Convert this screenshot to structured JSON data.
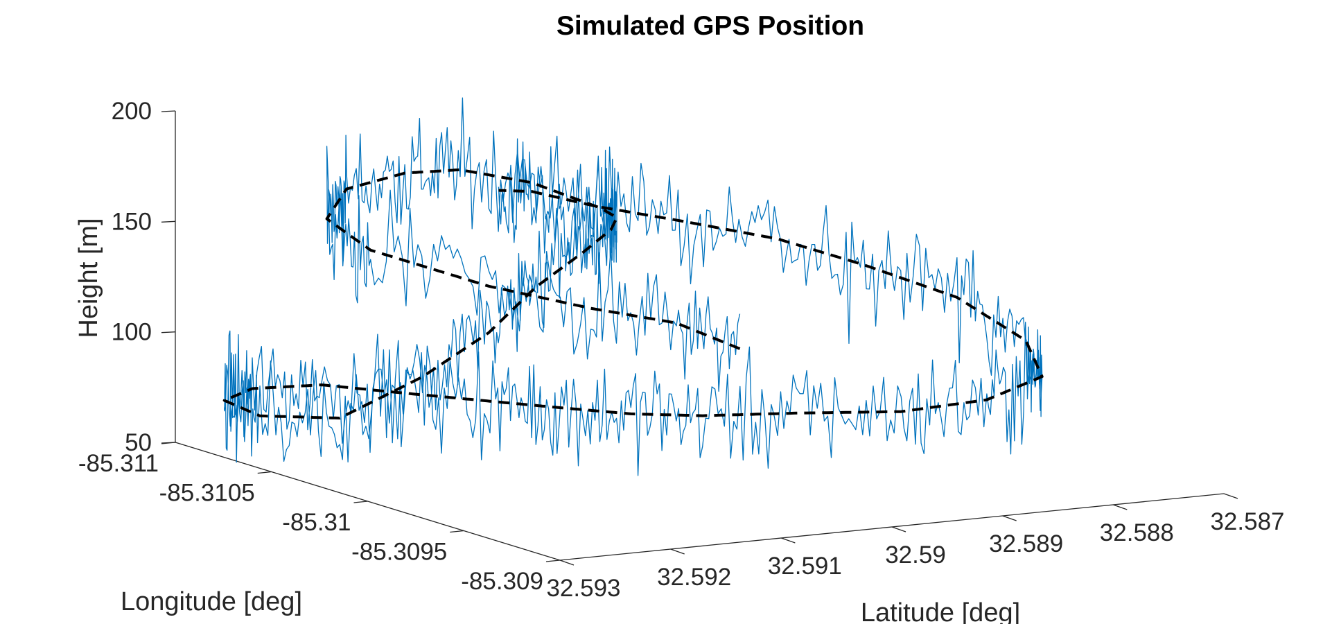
{
  "chart_data": {
    "type": "line",
    "title": "Simulated GPS Position",
    "xlabel": "Latitude [deg]",
    "ylabel": "Longitude [deg]",
    "zlabel": "Height [m]",
    "x_ticks": [
      "32.593",
      "32.592",
      "32.591",
      "32.59",
      "32.589",
      "32.588",
      "32.587"
    ],
    "y_ticks": [
      "-85.311",
      "-85.3105",
      "-85.31",
      "-85.3095",
      "-85.309"
    ],
    "z_ticks": [
      "50",
      "100",
      "150",
      "200"
    ],
    "xlim": [
      32.587,
      32.593
    ],
    "ylim": [
      -85.311,
      -85.309
    ],
    "zlim": [
      50,
      200
    ],
    "grid": false,
    "legend": "none",
    "series": [
      {
        "style": "noisy measurement",
        "color": "#0072BD",
        "noise_std_m": 12
      },
      {
        "style": "dashed true path",
        "color": "#000000",
        "lat": [
          32.5912,
          32.5916,
          32.5922,
          32.5926,
          32.5928,
          32.5925,
          32.5918,
          32.5911,
          32.5906,
          32.5903,
          32.5902,
          32.5904,
          32.5908,
          32.5914,
          32.592,
          32.5926,
          32.5932,
          32.5936,
          32.5938,
          32.5936,
          32.593,
          32.5922,
          32.5914,
          32.5908,
          32.5904,
          32.5901,
          32.5898,
          32.5893,
          32.5887,
          32.5881,
          32.5876,
          32.5874,
          32.5875,
          32.588,
          32.5886,
          32.5893,
          32.5899,
          32.5903,
          32.5906
        ],
        "lon": [
          -85.3091,
          -85.3092,
          -85.3093,
          -85.3096,
          -85.3101,
          -85.3105,
          -85.3108,
          -85.3109,
          -85.3109,
          -85.3107,
          -85.3104,
          -85.3102,
          -85.31,
          -85.3098,
          -85.3097,
          -85.3096,
          -85.3096,
          -85.3098,
          -85.3101,
          -85.3104,
          -85.3106,
          -85.3107,
          -85.3107,
          -85.3106,
          -85.3105,
          -85.3103,
          -85.3101,
          -85.3099,
          -85.3097,
          -85.3096,
          -85.3096,
          -85.3098,
          -85.3101,
          -85.3103,
          -85.3104,
          -85.3105,
          -85.3106,
          -85.3107,
          -85.3107
        ],
        "height": [
          134,
          145,
          152,
          156,
          160,
          162,
          164,
          165,
          164,
          162,
          158,
          160,
          162,
          160,
          150,
          135,
          118,
          96,
          90,
          88,
          85,
          80,
          72,
          68,
          66,
          67,
          70,
          74,
          77,
          82,
          90,
          100,
          112,
          124,
          136,
          145,
          152,
          158,
          160
        ]
      }
    ]
  }
}
